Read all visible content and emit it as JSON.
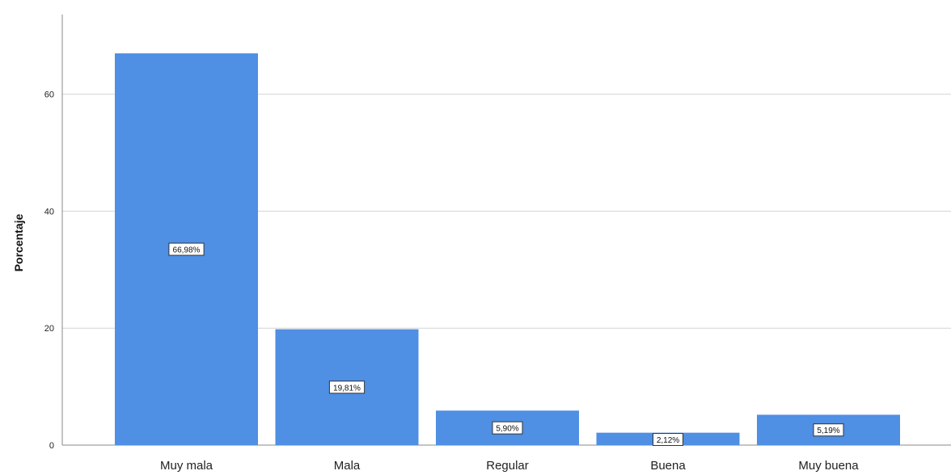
{
  "chart_data": {
    "type": "bar",
    "categories": [
      "Muy mala",
      "Mala",
      "Regular",
      "Buena",
      "Muy buena"
    ],
    "values": [
      66.98,
      19.81,
      5.9,
      2.12,
      5.19
    ],
    "data_labels": [
      "66,98%",
      "19,81%",
      "5,90%",
      "2,12%",
      "5,19%"
    ],
    "ylabel": "Porcentaje",
    "xlabel": "",
    "yticks": [
      0,
      20,
      40,
      60
    ],
    "ylim": [
      0,
      75
    ],
    "grid": true,
    "colors": {
      "bar": "#4f8fe4",
      "grid": "#d4d4d4",
      "axis": "#888888"
    }
  }
}
